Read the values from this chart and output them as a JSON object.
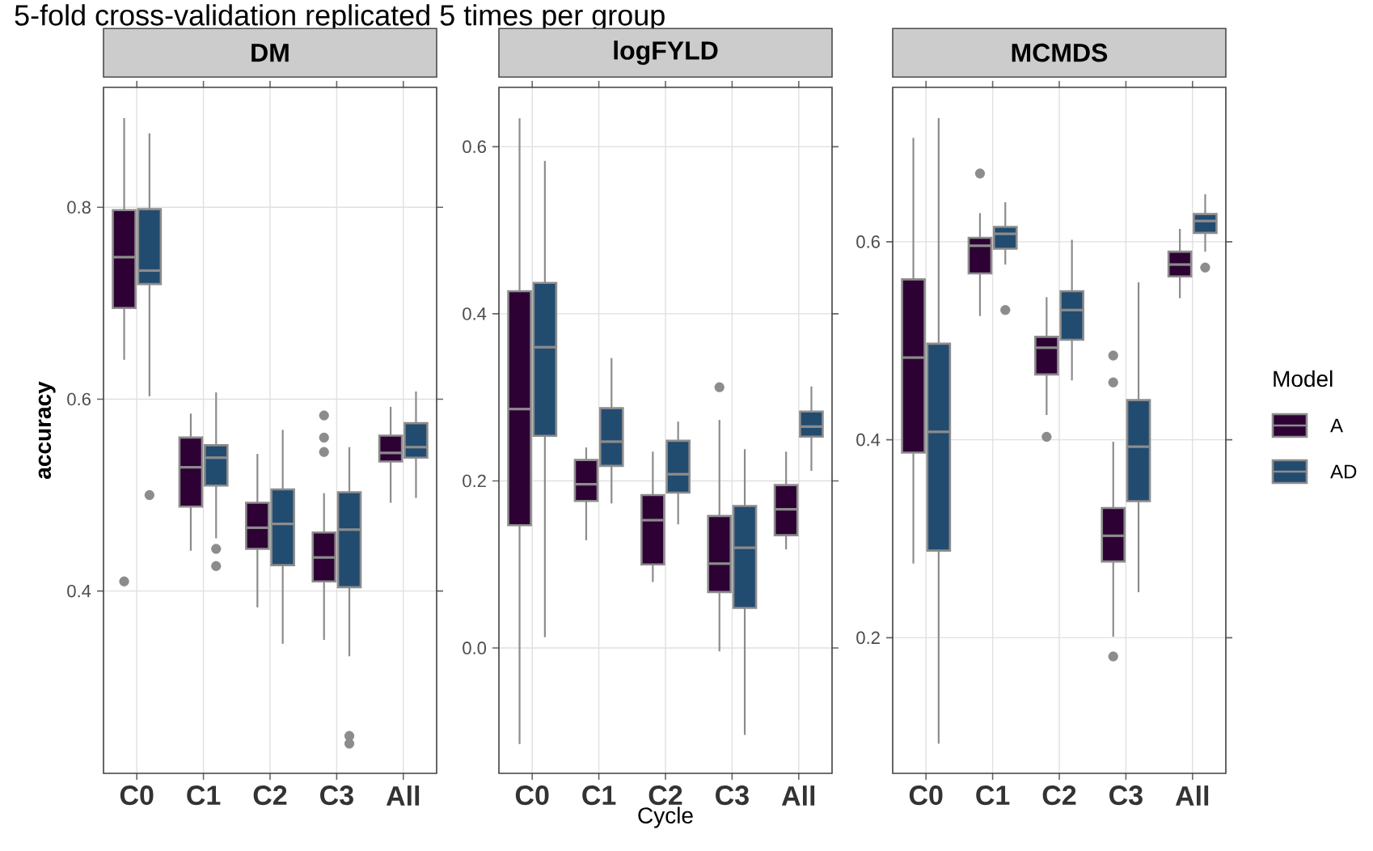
{
  "chart_data": [
    {
      "type": "box",
      "title": "DM",
      "ylabel": "accuracy",
      "annotations": [
        "5-fold cross-validation replicated 5 times per group"
      ],
      "categories": [
        "C0",
        "C1",
        "C2",
        "C3",
        "All"
      ],
      "ylim": [
        0.21,
        0.925
      ],
      "yticks": [
        0.4,
        0.6,
        0.8
      ],
      "grid": true,
      "series": [
        {
          "color": "#2d0134",
          "boxes": [
            {
              "low": 0.641,
              "q1": 0.695,
              "median": 0.748,
              "q3": 0.797,
              "high": 0.893,
              "outliers": [
                0.41
              ]
            },
            {
              "low": 0.442,
              "q1": 0.488,
              "median": 0.529,
              "q3": 0.56,
              "high": 0.585
            },
            {
              "low": 0.383,
              "q1": 0.444,
              "median": 0.466,
              "q3": 0.492,
              "high": 0.543
            },
            {
              "low": 0.349,
              "q1": 0.41,
              "median": 0.435,
              "q3": 0.461,
              "high": 0.502,
              "outliers": [
                0.583,
                0.56,
                0.545
              ]
            },
            {
              "low": 0.492,
              "q1": 0.535,
              "median": 0.544,
              "q3": 0.562,
              "high": 0.592
            }
          ]
        },
        {
          "color": "#224b70",
          "boxes": [
            {
              "low": 0.603,
              "q1": 0.72,
              "median": 0.734,
              "q3": 0.798,
              "high": 0.877,
              "outliers": [
                0.5
              ]
            },
            {
              "low": 0.455,
              "q1": 0.51,
              "median": 0.539,
              "q3": 0.552,
              "high": 0.607,
              "outliers": [
                0.444,
                0.426
              ]
            },
            {
              "low": 0.345,
              "q1": 0.427,
              "median": 0.47,
              "q3": 0.506,
              "high": 0.568
            },
            {
              "low": 0.332,
              "q1": 0.404,
              "median": 0.464,
              "q3": 0.503,
              "high": 0.55,
              "outliers": [
                0.249,
                0.241
              ]
            },
            {
              "low": 0.497,
              "q1": 0.539,
              "median": 0.55,
              "q3": 0.575,
              "high": 0.608
            }
          ]
        }
      ]
    },
    {
      "type": "box",
      "title": "logFYLD",
      "xlabel": "Cycle",
      "categories": [
        "C0",
        "C1",
        "C2",
        "C3",
        "All"
      ],
      "ylim": [
        -0.15,
        0.671
      ],
      "yticks": [
        {
          "value": 0,
          "label": "0.0"
        },
        0.2,
        0.4,
        0.6
      ],
      "grid": true,
      "series": [
        {
          "color": "#2d0134",
          "boxes": [
            {
              "low": -0.115,
              "q1": 0.147,
              "median": 0.286,
              "q3": 0.427,
              "high": 0.634
            },
            {
              "low": 0.129,
              "q1": 0.176,
              "median": 0.196,
              "q3": 0.225,
              "high": 0.24
            },
            {
              "low": 0.079,
              "q1": 0.1,
              "median": 0.153,
              "q3": 0.183,
              "high": 0.235
            },
            {
              "low": -0.004,
              "q1": 0.067,
              "median": 0.101,
              "q3": 0.158,
              "high": 0.273,
              "outliers": [
                0.312
              ]
            },
            {
              "low": 0.118,
              "q1": 0.135,
              "median": 0.166,
              "q3": 0.195,
              "high": 0.235
            }
          ]
        },
        {
          "color": "#224b70",
          "boxes": [
            {
              "low": 0.013,
              "q1": 0.254,
              "median": 0.36,
              "q3": 0.437,
              "high": 0.583
            },
            {
              "low": 0.173,
              "q1": 0.218,
              "median": 0.247,
              "q3": 0.287,
              "high": 0.347
            },
            {
              "low": 0.148,
              "q1": 0.186,
              "median": 0.208,
              "q3": 0.248,
              "high": 0.271
            },
            {
              "low": -0.104,
              "q1": 0.048,
              "median": 0.12,
              "q3": 0.17,
              "high": 0.238
            },
            {
              "low": 0.212,
              "q1": 0.253,
              "median": 0.265,
              "q3": 0.283,
              "high": 0.313
            }
          ]
        }
      ]
    },
    {
      "type": "box",
      "title": "MCMDS",
      "legend": "right",
      "legend_title": "Model",
      "categories": [
        "C0",
        "C1",
        "C2",
        "C3",
        "All"
      ],
      "ylim": [
        0.063,
        0.756
      ],
      "yticks": [
        0.2,
        0.4,
        0.6
      ],
      "grid": true,
      "series": [
        {
          "name": "A",
          "color": "#2d0134",
          "boxes": [
            {
              "low": 0.275,
              "q1": 0.387,
              "median": 0.483,
              "q3": 0.562,
              "high": 0.705
            },
            {
              "low": 0.525,
              "q1": 0.568,
              "median": 0.596,
              "q3": 0.604,
              "high": 0.629,
              "outliers": [
                0.669
              ]
            },
            {
              "low": 0.425,
              "q1": 0.466,
              "median": 0.493,
              "q3": 0.504,
              "high": 0.544,
              "outliers": [
                0.403
              ]
            },
            {
              "low": 0.201,
              "q1": 0.277,
              "median": 0.303,
              "q3": 0.331,
              "high": 0.398,
              "outliers": [
                0.485,
                0.458,
                0.181
              ]
            },
            {
              "low": 0.543,
              "q1": 0.565,
              "median": 0.577,
              "q3": 0.59,
              "high": 0.613
            }
          ]
        },
        {
          "name": "AD",
          "color": "#224b70",
          "boxes": [
            {
              "low": 0.093,
              "q1": 0.288,
              "median": 0.408,
              "q3": 0.497,
              "high": 0.725
            },
            {
              "low": 0.577,
              "q1": 0.593,
              "median": 0.608,
              "q3": 0.615,
              "high": 0.64,
              "outliers": [
                0.531
              ]
            },
            {
              "low": 0.46,
              "q1": 0.501,
              "median": 0.531,
              "q3": 0.55,
              "high": 0.602
            },
            {
              "low": 0.246,
              "q1": 0.338,
              "median": 0.393,
              "q3": 0.44,
              "high": 0.559
            },
            {
              "low": 0.59,
              "q1": 0.609,
              "median": 0.621,
              "q3": 0.628,
              "high": 0.648,
              "outliers": [
                0.574
              ]
            }
          ]
        }
      ]
    }
  ]
}
